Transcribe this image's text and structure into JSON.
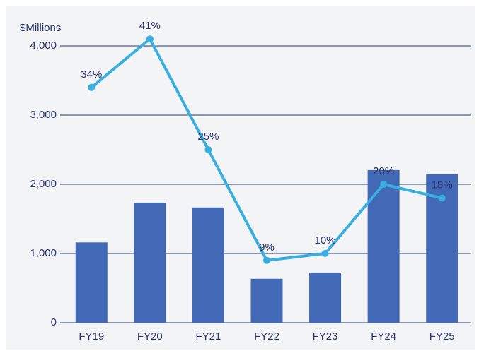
{
  "chart_data": {
    "type": "bar",
    "y_label": "$Millions",
    "categories": [
      "FY19",
      "FY20",
      "FY21",
      "FY22",
      "FY23",
      "FY24",
      "FY25"
    ],
    "ylim": [
      0,
      4000
    ],
    "yticks": [
      0,
      {
        "value": 1000,
        "label": "1,000"
      },
      {
        "value": 2000,
        "label": "2,000"
      },
      {
        "value": 3000,
        "label": "3,000"
      },
      {
        "value": 4000,
        "label": "4,000"
      }
    ],
    "y2lim": [
      0,
      40
    ],
    "grid": true,
    "series": [
      {
        "type": "bar",
        "color": "#4169b5",
        "values": [
          1160,
          1735,
          1665,
          635,
          725,
          2205,
          2145
        ]
      },
      {
        "type": "line",
        "axis": "y2",
        "color": "#3aaee0",
        "values": [
          34,
          41,
          25,
          9,
          10,
          20,
          18
        ],
        "value_labels": [
          "34%",
          "41%",
          "25%",
          "9%",
          "10%",
          "20%",
          "18%"
        ]
      }
    ]
  }
}
